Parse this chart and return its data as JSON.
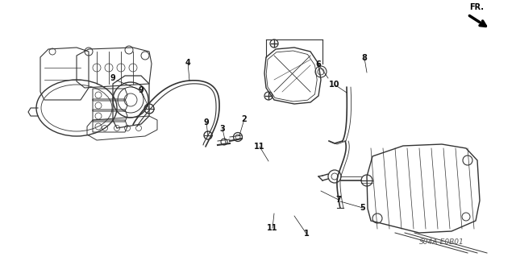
{
  "background_color": "#ffffff",
  "diagram_code": "S04A-E0B01",
  "fr_label": "FR.",
  "text_color": "#1a1a1a",
  "fig_width": 6.4,
  "fig_height": 3.19,
  "dpi": 100,
  "engine_color": "#333333",
  "line_color": "#444444",
  "label_color": "#111111",
  "font_size": 7.0
}
